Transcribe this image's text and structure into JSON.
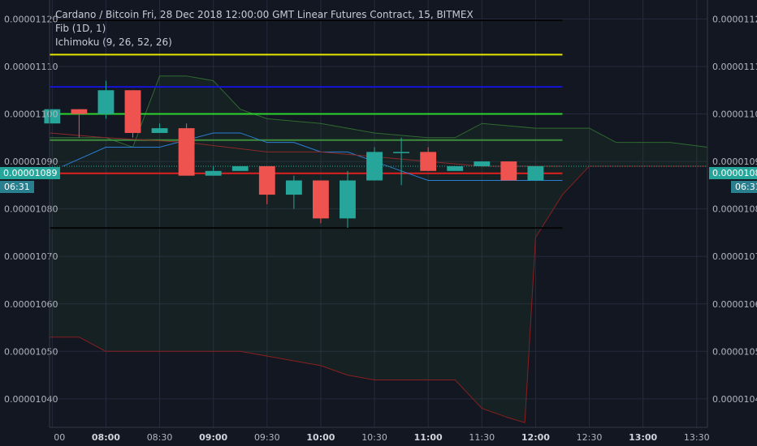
{
  "legend": {
    "title": "Cardano / Bitcoin Fri, 28 Dec 2018 12:00:00 GMT Linear Futures Contract, 15, BITMEX",
    "fib": "Fib (1D, 1)",
    "ichimoku": "Ichimoku (9, 26, 52, 26)"
  },
  "price_tag": {
    "price": "0.00001089",
    "countdown": "06:31"
  },
  "colors": {
    "background": "#131722",
    "grid": "#262b3e",
    "up": "#26a69a",
    "down": "#ef5350",
    "fib_yellow": "#e6e600",
    "fib_blue": "#1515d6",
    "fib_green": "#2ed42e",
    "fib_dgreen": "#3d8c3d",
    "fib_red": "#e02020",
    "fib_black": "#050505",
    "axis_text": "#b2b5be"
  },
  "chart_data": {
    "type": "candlestick",
    "ylim": [
      1.034e-05,
      1.124e-05
    ],
    "y_ticks": [
      "0.00001040",
      "0.00001050",
      "0.00001060",
      "0.00001070",
      "0.00001080",
      "0.00001090",
      "0.00001100",
      "0.00001110",
      "0.00001120"
    ],
    "x_ticks": [
      {
        "t": 7.5,
        "label": "00",
        "bold": false
      },
      {
        "t": 8.0,
        "label": "08:00",
        "bold": true
      },
      {
        "t": 8.5,
        "label": "08:30",
        "bold": false
      },
      {
        "t": 9.0,
        "label": "09:00",
        "bold": true
      },
      {
        "t": 9.5,
        "label": "09:30",
        "bold": false
      },
      {
        "t": 10.0,
        "label": "10:00",
        "bold": true
      },
      {
        "t": 10.5,
        "label": "10:30",
        "bold": false
      },
      {
        "t": 11.0,
        "label": "11:00",
        "bold": true
      },
      {
        "t": 11.5,
        "label": "11:30",
        "bold": false
      },
      {
        "t": 12.0,
        "label": "12:00",
        "bold": true
      },
      {
        "t": 12.5,
        "label": "12:30",
        "bold": false
      },
      {
        "t": 13.0,
        "label": "13:00",
        "bold": true
      },
      {
        "t": 13.5,
        "label": "13:30",
        "bold": false
      }
    ],
    "x_range": [
      7.475,
      13.6
    ],
    "candles": [
      {
        "t": 7.5,
        "o": 1.098e-05,
        "h": 1.101e-05,
        "l": 1.098e-05,
        "c": 1.101e-05
      },
      {
        "t": 7.75,
        "o": 1.101e-05,
        "h": 1.101e-05,
        "l": 1.095e-05,
        "c": 1.1e-05
      },
      {
        "t": 8.0,
        "o": 1.1e-05,
        "h": 1.107e-05,
        "l": 1.099e-05,
        "c": 1.105e-05
      },
      {
        "t": 8.25,
        "o": 1.105e-05,
        "h": 1.105e-05,
        "l": 1.095e-05,
        "c": 1.096e-05
      },
      {
        "t": 8.5,
        "o": 1.096e-05,
        "h": 1.098e-05,
        "l": 1.096e-05,
        "c": 1.097e-05
      },
      {
        "t": 8.75,
        "o": 1.097e-05,
        "h": 1.098e-05,
        "l": 1.087e-05,
        "c": 1.087e-05
      },
      {
        "t": 9.0,
        "o": 1.087e-05,
        "h": 1.089e-05,
        "l": 1.087e-05,
        "c": 1.088e-05
      },
      {
        "t": 9.25,
        "o": 1.088e-05,
        "h": 1.089e-05,
        "l": 1.088e-05,
        "c": 1.089e-05
      },
      {
        "t": 9.5,
        "o": 1.089e-05,
        "h": 1.089e-05,
        "l": 1.081e-05,
        "c": 1.083e-05
      },
      {
        "t": 9.75,
        "o": 1.083e-05,
        "h": 1.087e-05,
        "l": 1.08e-05,
        "c": 1.086e-05
      },
      {
        "t": 10.0,
        "o": 1.086e-05,
        "h": 1.086e-05,
        "l": 1.077e-05,
        "c": 1.078e-05
      },
      {
        "t": 10.25,
        "o": 1.078e-05,
        "h": 1.088e-05,
        "l": 1.076e-05,
        "c": 1.086e-05
      },
      {
        "t": 10.5,
        "o": 1.086e-05,
        "h": 1.093e-05,
        "l": 1.086e-05,
        "c": 1.092e-05
      },
      {
        "t": 10.75,
        "o": 1.092e-05,
        "h": 1.095e-05,
        "l": 1.085e-05,
        "c": 1.092e-05
      },
      {
        "t": 11.0,
        "o": 1.092e-05,
        "h": 1.093e-05,
        "l": 1.088e-05,
        "c": 1.088e-05
      },
      {
        "t": 11.25,
        "o": 1.088e-05,
        "h": 1.089e-05,
        "l": 1.088e-05,
        "c": 1.089e-05
      },
      {
        "t": 11.5,
        "o": 1.089e-05,
        "h": 1.09e-05,
        "l": 1.089e-05,
        "c": 1.09e-05
      },
      {
        "t": 11.75,
        "o": 1.09e-05,
        "h": 1.09e-05,
        "l": 1.086e-05,
        "c": 1.086e-05
      },
      {
        "t": 12.0,
        "o": 1.086e-05,
        "h": 1.089e-05,
        "l": 1.086e-05,
        "c": 1.089e-05
      }
    ],
    "fib_levels": [
      {
        "price": 1.1125e-05,
        "color": "#e6e600"
      },
      {
        "price": 1.1057e-05,
        "color": "#1515d6"
      },
      {
        "price": 1.1e-05,
        "color": "#2ed42e"
      },
      {
        "price": 1.0945e-05,
        "color": "#3d8c3d"
      },
      {
        "price": 1.0875e-05,
        "color": "#e02020"
      },
      {
        "price": 1.076e-05,
        "color": "#050505"
      }
    ],
    "fib_x_range": [
      7.475,
      12.25
    ],
    "ichimoku": {
      "cloud_top": [
        [
          7.475,
          1.095e-05
        ],
        [
          8.0,
          1.095e-05
        ],
        [
          8.25,
          1.093e-05
        ],
        [
          8.5,
          1.108e-05
        ],
        [
          8.75,
          1.108e-05
        ],
        [
          9.0,
          1.107e-05
        ],
        [
          9.25,
          1.101e-05
        ],
        [
          9.5,
          1.099e-05
        ],
        [
          10.0,
          1.098e-05
        ],
        [
          10.5,
          1.096e-05
        ],
        [
          11.0,
          1.095e-05
        ],
        [
          11.25,
          1.095e-05
        ],
        [
          11.5,
          1.098e-05
        ],
        [
          12.0,
          1.097e-05
        ],
        [
          12.5,
          1.097e-05
        ],
        [
          12.75,
          1.094e-05
        ],
        [
          13.25,
          1.094e-05
        ],
        [
          13.6,
          1.093e-05
        ]
      ],
      "cloud_bottom": [
        [
          7.475,
          1.053e-05
        ],
        [
          7.75,
          1.053e-05
        ],
        [
          8.0,
          1.05e-05
        ],
        [
          8.5,
          1.05e-05
        ],
        [
          9.25,
          1.05e-05
        ],
        [
          9.5,
          1.049e-05
        ],
        [
          10.0,
          1.047e-05
        ],
        [
          10.25,
          1.045e-05
        ],
        [
          10.5,
          1.044e-05
        ],
        [
          11.0,
          1.044e-05
        ],
        [
          11.25,
          1.044e-05
        ],
        [
          11.5,
          1.038e-05
        ],
        [
          11.75,
          1.036e-05
        ],
        [
          11.9,
          1.035e-05
        ],
        [
          12.0,
          1.074e-05
        ],
        [
          12.25,
          1.083e-05
        ],
        [
          12.5,
          1.089e-05
        ],
        [
          13.6,
          1.089e-05
        ]
      ],
      "tenkan": [
        [
          7.6,
          1.089e-05
        ],
        [
          8.0,
          1.093e-05
        ],
        [
          8.5,
          1.093e-05
        ],
        [
          9.0,
          1.096e-05
        ],
        [
          9.25,
          1.096e-05
        ],
        [
          9.5,
          1.094e-05
        ],
        [
          9.75,
          1.094e-05
        ],
        [
          10.0,
          1.092e-05
        ],
        [
          10.25,
          1.092e-05
        ],
        [
          10.5,
          1.09e-05
        ],
        [
          10.75,
          1.088e-05
        ],
        [
          11.0,
          1.086e-05
        ],
        [
          11.5,
          1.086e-05
        ],
        [
          12.25,
          1.086e-05
        ]
      ],
      "kijun": [
        [
          7.475,
          1.096e-05
        ],
        [
          8.0,
          1.095e-05
        ],
        [
          8.75,
          1.094e-05
        ],
        [
          9.5,
          1.092e-05
        ],
        [
          10.0,
          1.092e-05
        ],
        [
          10.5,
          1.091e-05
        ],
        [
          11.0,
          1.09e-05
        ],
        [
          11.5,
          1.089e-05
        ],
        [
          12.25,
          1.089e-05
        ]
      ]
    }
  }
}
